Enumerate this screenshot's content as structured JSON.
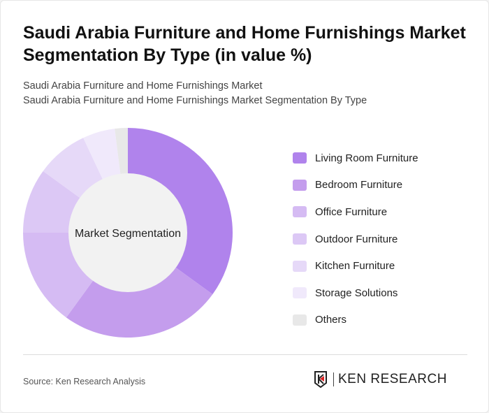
{
  "title": "Saudi Arabia Furniture and Home Furnishings Market Segmentation By Type (in value %)",
  "subtitle1": "Saudi Arabia Furniture and Home Furnishings Market",
  "subtitle2": "Saudi Arabia Furniture and Home Furnishings Market Segmentation By Type",
  "source": "Source: Ken Research Analysis",
  "logo_text": "KEN RESEARCH",
  "chart_data": {
    "type": "pie",
    "variant": "donut",
    "center_label": "Market Segmentation",
    "legend_position": "right",
    "categories": [
      "Living Room Furniture",
      "Bedroom Furniture",
      "Office Furniture",
      "Outdoor Furniture",
      "Kitchen Furniture",
      "Storage Solutions",
      "Others"
    ],
    "values": [
      35,
      25,
      15,
      10,
      8,
      5,
      2
    ],
    "colors": [
      "#b083ec",
      "#c49ded",
      "#d5bbf3",
      "#dcc8f5",
      "#e6d9f8",
      "#f0e9fb",
      "#e8e8e8"
    ]
  }
}
